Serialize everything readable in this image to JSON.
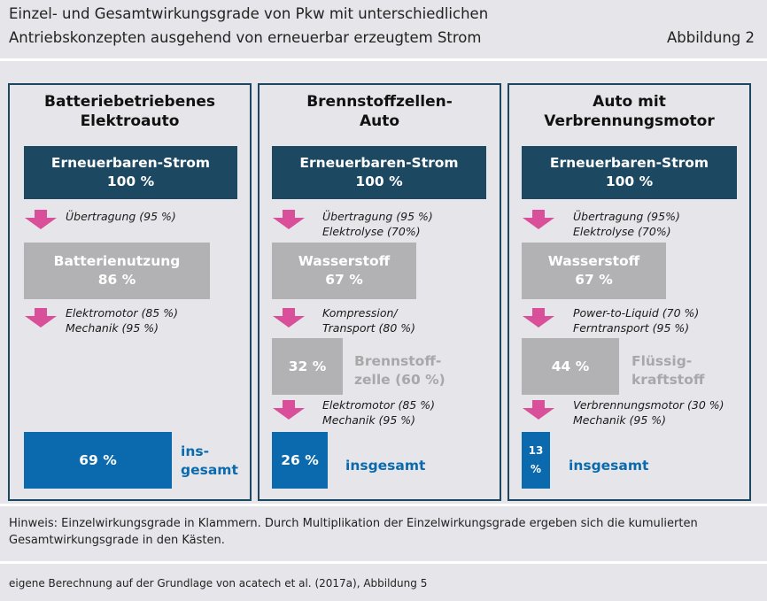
{
  "header": {
    "title_line1": "Einzel- und Gesamtwirkungsgrade von Pkw mit unterschiedlichen",
    "title_line2": "Antriebskonzepten ausgehend von erneuerbar erzeugtem Strom",
    "figure_label": "Abbildung 2"
  },
  "chart_data": {
    "type": "flow",
    "unit": "%",
    "panels": [
      {
        "title_line1": "Batteriebetriebenes",
        "title_line2": "Elektroauto",
        "source_box": {
          "label": "Erneuerbaren-Strom",
          "value": 100,
          "value_text": "100 %"
        },
        "step1": {
          "line1": "Übertragung (95 %)",
          "line2": ""
        },
        "mid_box": {
          "label": "Batterienutzung",
          "value": 86,
          "value_text": "86 %"
        },
        "step2": {
          "line1": "Elektromotor (85 %)",
          "line2": "Mechanik (95 %)"
        },
        "total": {
          "value": 69,
          "value_text": "69 %",
          "label_line1": "ins-",
          "label_line2": "gesamt"
        }
      },
      {
        "title_line1": "Brennstoffzellen-",
        "title_line2": "Auto",
        "source_box": {
          "label": "Erneuerbaren-Strom",
          "value": 100,
          "value_text": "100 %"
        },
        "step1": {
          "line1": "Übertragung (95 %)",
          "line2": "Elektrolyse (70%)"
        },
        "mid_box": {
          "label": "Wasserstoff",
          "value": 67,
          "value_text": "67 %"
        },
        "step2": {
          "line1": "Kompression/",
          "line2": "Transport (80 %)"
        },
        "conv_box": {
          "value": 32,
          "value_text": "32 %",
          "label_line1": "Brennstoff-",
          "label_line2": "zelle (60 %)"
        },
        "step3": {
          "line1": "Elektromotor (85 %)",
          "line2": "Mechanik (95 %)"
        },
        "total": {
          "value": 26,
          "value_text": "26 %",
          "label_line1": "insgesamt",
          "label_line2": ""
        }
      },
      {
        "title_line1": "Auto mit",
        "title_line2": "Verbrennungsmotor",
        "source_box": {
          "label": "Erneuerbaren-Strom",
          "value": 100,
          "value_text": "100 %"
        },
        "step1": {
          "line1": "Übertragung (95%)",
          "line2": "Elektrolyse (70%)"
        },
        "mid_box": {
          "label": "Wasserstoff",
          "value": 67,
          "value_text": "67 %"
        },
        "step2": {
          "line1": "Power-to-Liquid (70 %)",
          "line2": "Ferntransport (95 %)"
        },
        "conv_box": {
          "value": 44,
          "value_text": "44 %",
          "label_line1": "Flüssig-",
          "label_line2": "kraftstoff"
        },
        "step3": {
          "line1": "Verbrennungsmotor (30 %)",
          "line2": "Mechanik (95 %)"
        },
        "total": {
          "value": 13,
          "value_text": "13 %",
          "label_line1": "insgesamt",
          "label_line2": ""
        }
      }
    ]
  },
  "footer": {
    "note_line1": "Hinweis: Einzelwirkungsgrade in Klammern. Durch Multiplikation der Einzelwirkungsgrade ergeben sich die kumulierten",
    "note_line2": "Gesamtwirkungsgrade in den Kästen.",
    "source": "eigene Berechnung auf der Grundlage von acatech et al. (2017a), Abbildung 5"
  },
  "colors": {
    "navy": "#1c4862",
    "grey": "#b2b2b4",
    "blue": "#0a6aad",
    "arrow": "#d94f9a"
  }
}
